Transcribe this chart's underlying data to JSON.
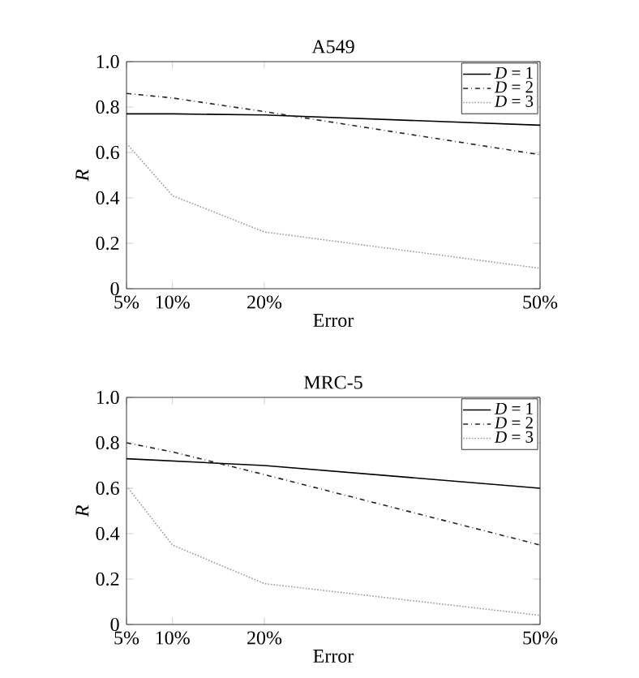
{
  "chart_data": [
    {
      "type": "line",
      "title": "A549",
      "xlabel": "Error",
      "ylabel": "R",
      "x": [
        5,
        10,
        20,
        50
      ],
      "xlim": [
        5,
        50
      ],
      "xticks": [
        {
          "value": 5,
          "label": "5%"
        },
        {
          "value": 10,
          "label": "10%"
        },
        {
          "value": 20,
          "label": "20%"
        },
        {
          "value": 50,
          "label": "50%"
        }
      ],
      "ylim": [
        0,
        1
      ],
      "yticks": [
        0,
        0.2,
        0.4,
        0.6,
        0.8,
        {
          "value": 1,
          "label": "1.0"
        }
      ],
      "legend": "top right",
      "marker": "none",
      "series": [
        {
          "name": "*D* = 1",
          "color": "#000000",
          "line_style": "solid",
          "values": [
            0.77,
            0.77,
            0.765,
            0.72
          ]
        },
        {
          "name": "*D* = 2",
          "color": "#222222",
          "line_style": "dashed",
          "values": [
            0.86,
            0.84,
            0.78,
            0.59
          ]
        },
        {
          "name": "*D* = 3",
          "color": "#999999",
          "line_style": "dotted",
          "values": [
            0.64,
            0.41,
            0.25,
            0.09
          ]
        }
      ]
    },
    {
      "type": "line",
      "title": "MRC-5",
      "xlabel": "Error",
      "ylabel": "R",
      "x": [
        5,
        10,
        20,
        50
      ],
      "xlim": [
        5,
        50
      ],
      "xticks": [
        {
          "value": 5,
          "label": "5%"
        },
        {
          "value": 10,
          "label": "10%"
        },
        {
          "value": 20,
          "label": "20%"
        },
        {
          "value": 50,
          "label": "50%"
        }
      ],
      "ylim": [
        0,
        1
      ],
      "yticks": [
        0,
        0.2,
        0.4,
        0.6,
        0.8,
        {
          "value": 1,
          "label": "1.0"
        }
      ],
      "legend": "top right",
      "marker": "none",
      "series": [
        {
          "name": "*D* = 1",
          "color": "#000000",
          "line_style": "solid",
          "values": [
            0.73,
            0.72,
            0.7,
            0.6
          ]
        },
        {
          "name": "*D* = 2",
          "color": "#222222",
          "line_style": "dashed",
          "values": [
            0.8,
            0.76,
            0.66,
            0.35
          ]
        },
        {
          "name": "*D* = 3",
          "color": "#999999",
          "line_style": "dotted",
          "values": [
            0.61,
            0.35,
            0.18,
            0.04
          ]
        }
      ]
    }
  ]
}
